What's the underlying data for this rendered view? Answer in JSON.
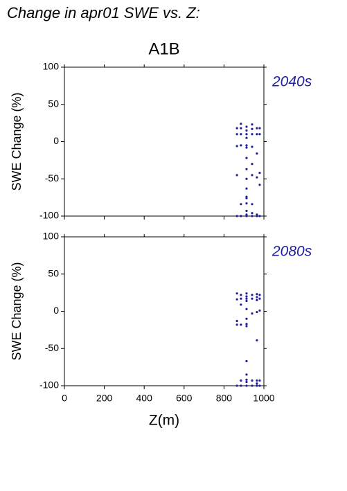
{
  "title": "Change in apr01 SWE vs. Z:",
  "scenario": "A1B",
  "chart_data": [
    {
      "type": "scatter",
      "label": "2040s",
      "ylabel": "SWE Change (%)",
      "xlim": [
        0,
        1000
      ],
      "ylim": [
        -100,
        100
      ],
      "yticks": [
        -100,
        -50,
        0,
        50,
        100
      ],
      "series": [
        {
          "color": "#1f1f9f",
          "x": [
            865,
            865,
            865,
            865,
            865,
            885,
            885,
            885,
            885,
            885,
            885,
            913,
            913,
            913,
            913,
            913,
            913,
            913,
            913,
            913,
            913,
            913,
            913,
            913,
            913,
            913,
            913,
            941,
            941,
            941,
            941,
            941,
            941,
            941,
            941,
            941,
            965,
            965,
            965,
            965,
            965,
            965,
            979,
            979,
            979,
            979,
            979
          ],
          "values": [
            18,
            10,
            -6,
            -45,
            -100,
            24,
            18,
            10,
            -5,
            -84,
            -100,
            20,
            15,
            10,
            5,
            -5,
            -8,
            -22,
            -37,
            -50,
            -63,
            -74,
            -76,
            -83,
            -93,
            -98,
            -100,
            23,
            17,
            10,
            -7,
            -30,
            -45,
            -84,
            -96,
            -100,
            18,
            10,
            -16,
            -48,
            -98,
            -100,
            18,
            10,
            -42,
            -58,
            -100
          ]
        }
      ]
    },
    {
      "type": "scatter",
      "label": "2080s",
      "ylabel": "SWE Change (%)",
      "xlabel": "Z(m)",
      "xlim": [
        0,
        1000
      ],
      "ylim": [
        -100,
        100
      ],
      "xticks": [
        0,
        200,
        400,
        600,
        800,
        1000
      ],
      "yticks": [
        -100,
        -50,
        0,
        50,
        100
      ],
      "series": [
        {
          "color": "#1f1f9f",
          "x": [
            865,
            865,
            865,
            865,
            865,
            885,
            885,
            885,
            885,
            885,
            885,
            913,
            913,
            913,
            913,
            913,
            913,
            913,
            913,
            913,
            913,
            913,
            913,
            913,
            941,
            941,
            941,
            941,
            941,
            965,
            965,
            965,
            965,
            965,
            965,
            965,
            965,
            979,
            979,
            979,
            979,
            979
          ],
          "values": [
            24,
            16,
            -13,
            -18,
            -100,
            22,
            17,
            9,
            -18,
            -93,
            -100,
            24,
            20,
            17,
            14,
            3,
            -10,
            -17,
            -20,
            -67,
            -85,
            -92,
            -95,
            -100,
            22,
            17,
            -3,
            -93,
            -100,
            23,
            19,
            15,
            -1,
            -39,
            -93,
            -97,
            -100,
            22,
            17,
            1,
            -93,
            -100
          ]
        }
      ]
    }
  ]
}
